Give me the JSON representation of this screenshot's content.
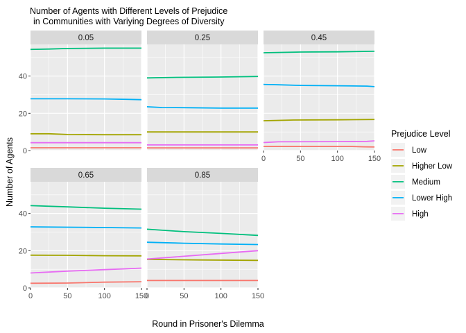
{
  "chart_data": {
    "type": "line",
    "title_lines": [
      "Number of Agents with Different Levels of Prejudice",
      "in Communities with Variying Degrees of Diversity"
    ],
    "xlabel": "Round in Prisoner's Dilemma",
    "ylabel": "Number of Agents",
    "xlim": [
      0,
      150
    ],
    "ylim": [
      0,
      57
    ],
    "x_ticks": [
      0,
      50,
      100,
      150
    ],
    "y_ticks": [
      0,
      20,
      40
    ],
    "facet_layout": "wrap, 3 columns",
    "grid": true,
    "legend": {
      "title": "Prejudice Level",
      "placement": "right",
      "entries": [
        {
          "name": "Low",
          "color": "#F8766D"
        },
        {
          "name": "Higher Low",
          "color": "#A3A500"
        },
        {
          "name": "Medium",
          "color": "#00BF7D"
        },
        {
          "name": "Lower High",
          "color": "#00B0F6"
        },
        {
          "name": "High",
          "color": "#E76BF3"
        }
      ]
    },
    "facets": [
      {
        "label": "0.05",
        "series": [
          {
            "name": "Low",
            "points": [
              [
                0,
                1.5
              ],
              [
                150,
                1.5
              ]
            ]
          },
          {
            "name": "Higher Low",
            "points": [
              [
                0,
                9
              ],
              [
                25,
                9
              ],
              [
                50,
                8.6
              ],
              [
                100,
                8.5
              ],
              [
                150,
                8.5
              ]
            ]
          },
          {
            "name": "Medium",
            "points": [
              [
                0,
                54.3
              ],
              [
                25,
                54.5
              ],
              [
                50,
                54.8
              ],
              [
                100,
                55
              ],
              [
                150,
                55
              ]
            ]
          },
          {
            "name": "Lower High",
            "points": [
              [
                0,
                27.8
              ],
              [
                50,
                27.8
              ],
              [
                100,
                27.7
              ],
              [
                130,
                27.5
              ],
              [
                150,
                27.3
              ]
            ]
          },
          {
            "name": "High",
            "points": [
              [
                0,
                4.2
              ],
              [
                150,
                4.2
              ]
            ]
          }
        ]
      },
      {
        "label": "0.25",
        "series": [
          {
            "name": "Low",
            "points": [
              [
                0,
                1.4
              ],
              [
                150,
                1.4
              ]
            ]
          },
          {
            "name": "Higher Low",
            "points": [
              [
                0,
                10
              ],
              [
                150,
                10
              ]
            ]
          },
          {
            "name": "Medium",
            "points": [
              [
                0,
                39
              ],
              [
                40,
                39.3
              ],
              [
                100,
                39.5
              ],
              [
                150,
                39.8
              ]
            ]
          },
          {
            "name": "Lower High",
            "points": [
              [
                0,
                23.5
              ],
              [
                20,
                23.1
              ],
              [
                60,
                23
              ],
              [
                100,
                22.8
              ],
              [
                150,
                22.8
              ]
            ]
          },
          {
            "name": "High",
            "points": [
              [
                0,
                3
              ],
              [
                150,
                3
              ]
            ]
          }
        ]
      },
      {
        "label": "0.45",
        "series": [
          {
            "name": "Low",
            "points": [
              [
                0,
                2.2
              ],
              [
                120,
                2.2
              ],
              [
                135,
                2
              ],
              [
                150,
                1.9
              ]
            ]
          },
          {
            "name": "Higher Low",
            "points": [
              [
                0,
                16
              ],
              [
                40,
                16.4
              ],
              [
                100,
                16.5
              ],
              [
                150,
                16.7
              ]
            ]
          },
          {
            "name": "Medium",
            "points": [
              [
                0,
                52.5
              ],
              [
                50,
                52.9
              ],
              [
                100,
                53
              ],
              [
                150,
                53.3
              ]
            ]
          },
          {
            "name": "Lower High",
            "points": [
              [
                0,
                35.5
              ],
              [
                20,
                35.3
              ],
              [
                50,
                35
              ],
              [
                100,
                34.8
              ],
              [
                140,
                34.6
              ],
              [
                150,
                34.3
              ]
            ]
          },
          {
            "name": "High",
            "points": [
              [
                0,
                4.3
              ],
              [
                20,
                4.7
              ],
              [
                100,
                4.8
              ],
              [
                140,
                4.9
              ],
              [
                150,
                5.2
              ]
            ]
          }
        ]
      },
      {
        "label": "0.65",
        "series": [
          {
            "name": "Low",
            "points": [
              [
                0,
                2.5
              ],
              [
                50,
                2.6
              ],
              [
                100,
                3.1
              ],
              [
                150,
                3.3
              ]
            ]
          },
          {
            "name": "Higher Low",
            "points": [
              [
                0,
                17.6
              ],
              [
                50,
                17.5
              ],
              [
                100,
                17.3
              ],
              [
                150,
                17.2
              ]
            ]
          },
          {
            "name": "Medium",
            "points": [
              [
                0,
                44.2
              ],
              [
                50,
                43.5
              ],
              [
                100,
                42.8
              ],
              [
                150,
                42.3
              ]
            ]
          },
          {
            "name": "Lower High",
            "points": [
              [
                0,
                32.8
              ],
              [
                50,
                32.6
              ],
              [
                100,
                32.4
              ],
              [
                150,
                32.2
              ]
            ]
          },
          {
            "name": "High",
            "points": [
              [
                0,
                8
              ],
              [
                50,
                9
              ],
              [
                100,
                9.8
              ],
              [
                150,
                10.6
              ]
            ]
          }
        ]
      },
      {
        "label": "0.85",
        "series": [
          {
            "name": "Low",
            "points": [
              [
                0,
                4
              ],
              [
                150,
                4
              ]
            ]
          },
          {
            "name": "Higher Low",
            "points": [
              [
                0,
                15.3
              ],
              [
                70,
                15
              ],
              [
                150,
                14.8
              ]
            ]
          },
          {
            "name": "Medium",
            "points": [
              [
                0,
                31.5
              ],
              [
                50,
                30.2
              ],
              [
                100,
                29.3
              ],
              [
                150,
                28.2
              ]
            ]
          },
          {
            "name": "Lower High",
            "points": [
              [
                0,
                24.5
              ],
              [
                50,
                24
              ],
              [
                100,
                23.6
              ],
              [
                150,
                23.3
              ]
            ]
          },
          {
            "name": "High",
            "points": [
              [
                0,
                15.5
              ],
              [
                50,
                17
              ],
              [
                100,
                18.5
              ],
              [
                150,
                20
              ]
            ]
          }
        ]
      }
    ]
  }
}
